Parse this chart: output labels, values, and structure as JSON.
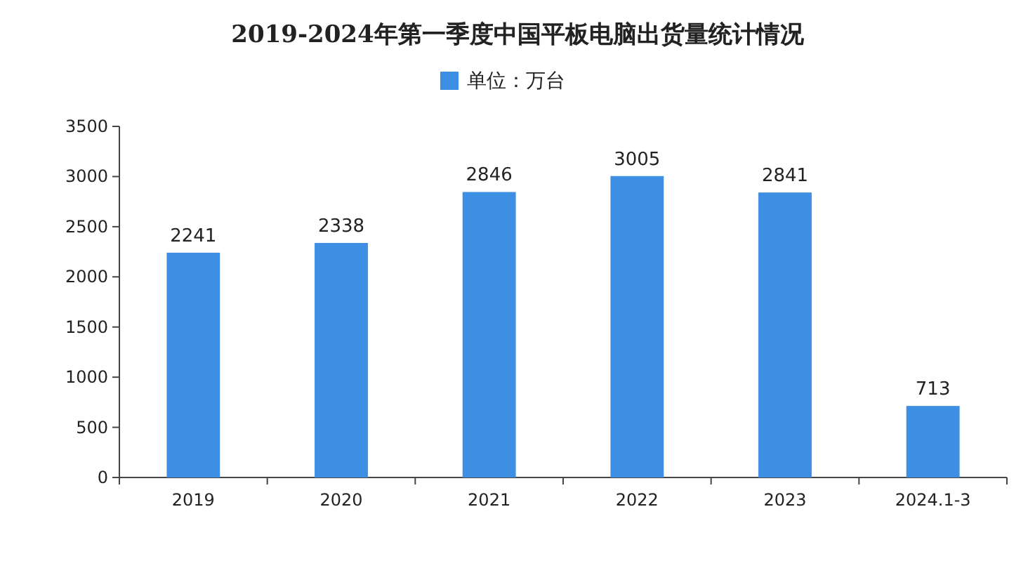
{
  "chart_data": {
    "type": "bar",
    "title": "2019-2024年第一季度中国平板电脑出货量统计情况",
    "categories": [
      "2019",
      "2020",
      "2021",
      "2022",
      "2023",
      "2024.1-3"
    ],
    "series": [
      {
        "name": "单位：万台",
        "color": "#3d8fe3",
        "values": [
          2241,
          2338,
          2846,
          3005,
          2841,
          713
        ]
      }
    ],
    "ylim": [
      0,
      3500
    ],
    "yticks": [
      0,
      500,
      1000,
      1500,
      2000,
      2500,
      3000,
      3500
    ],
    "data_labels": true,
    "legend": "top"
  }
}
